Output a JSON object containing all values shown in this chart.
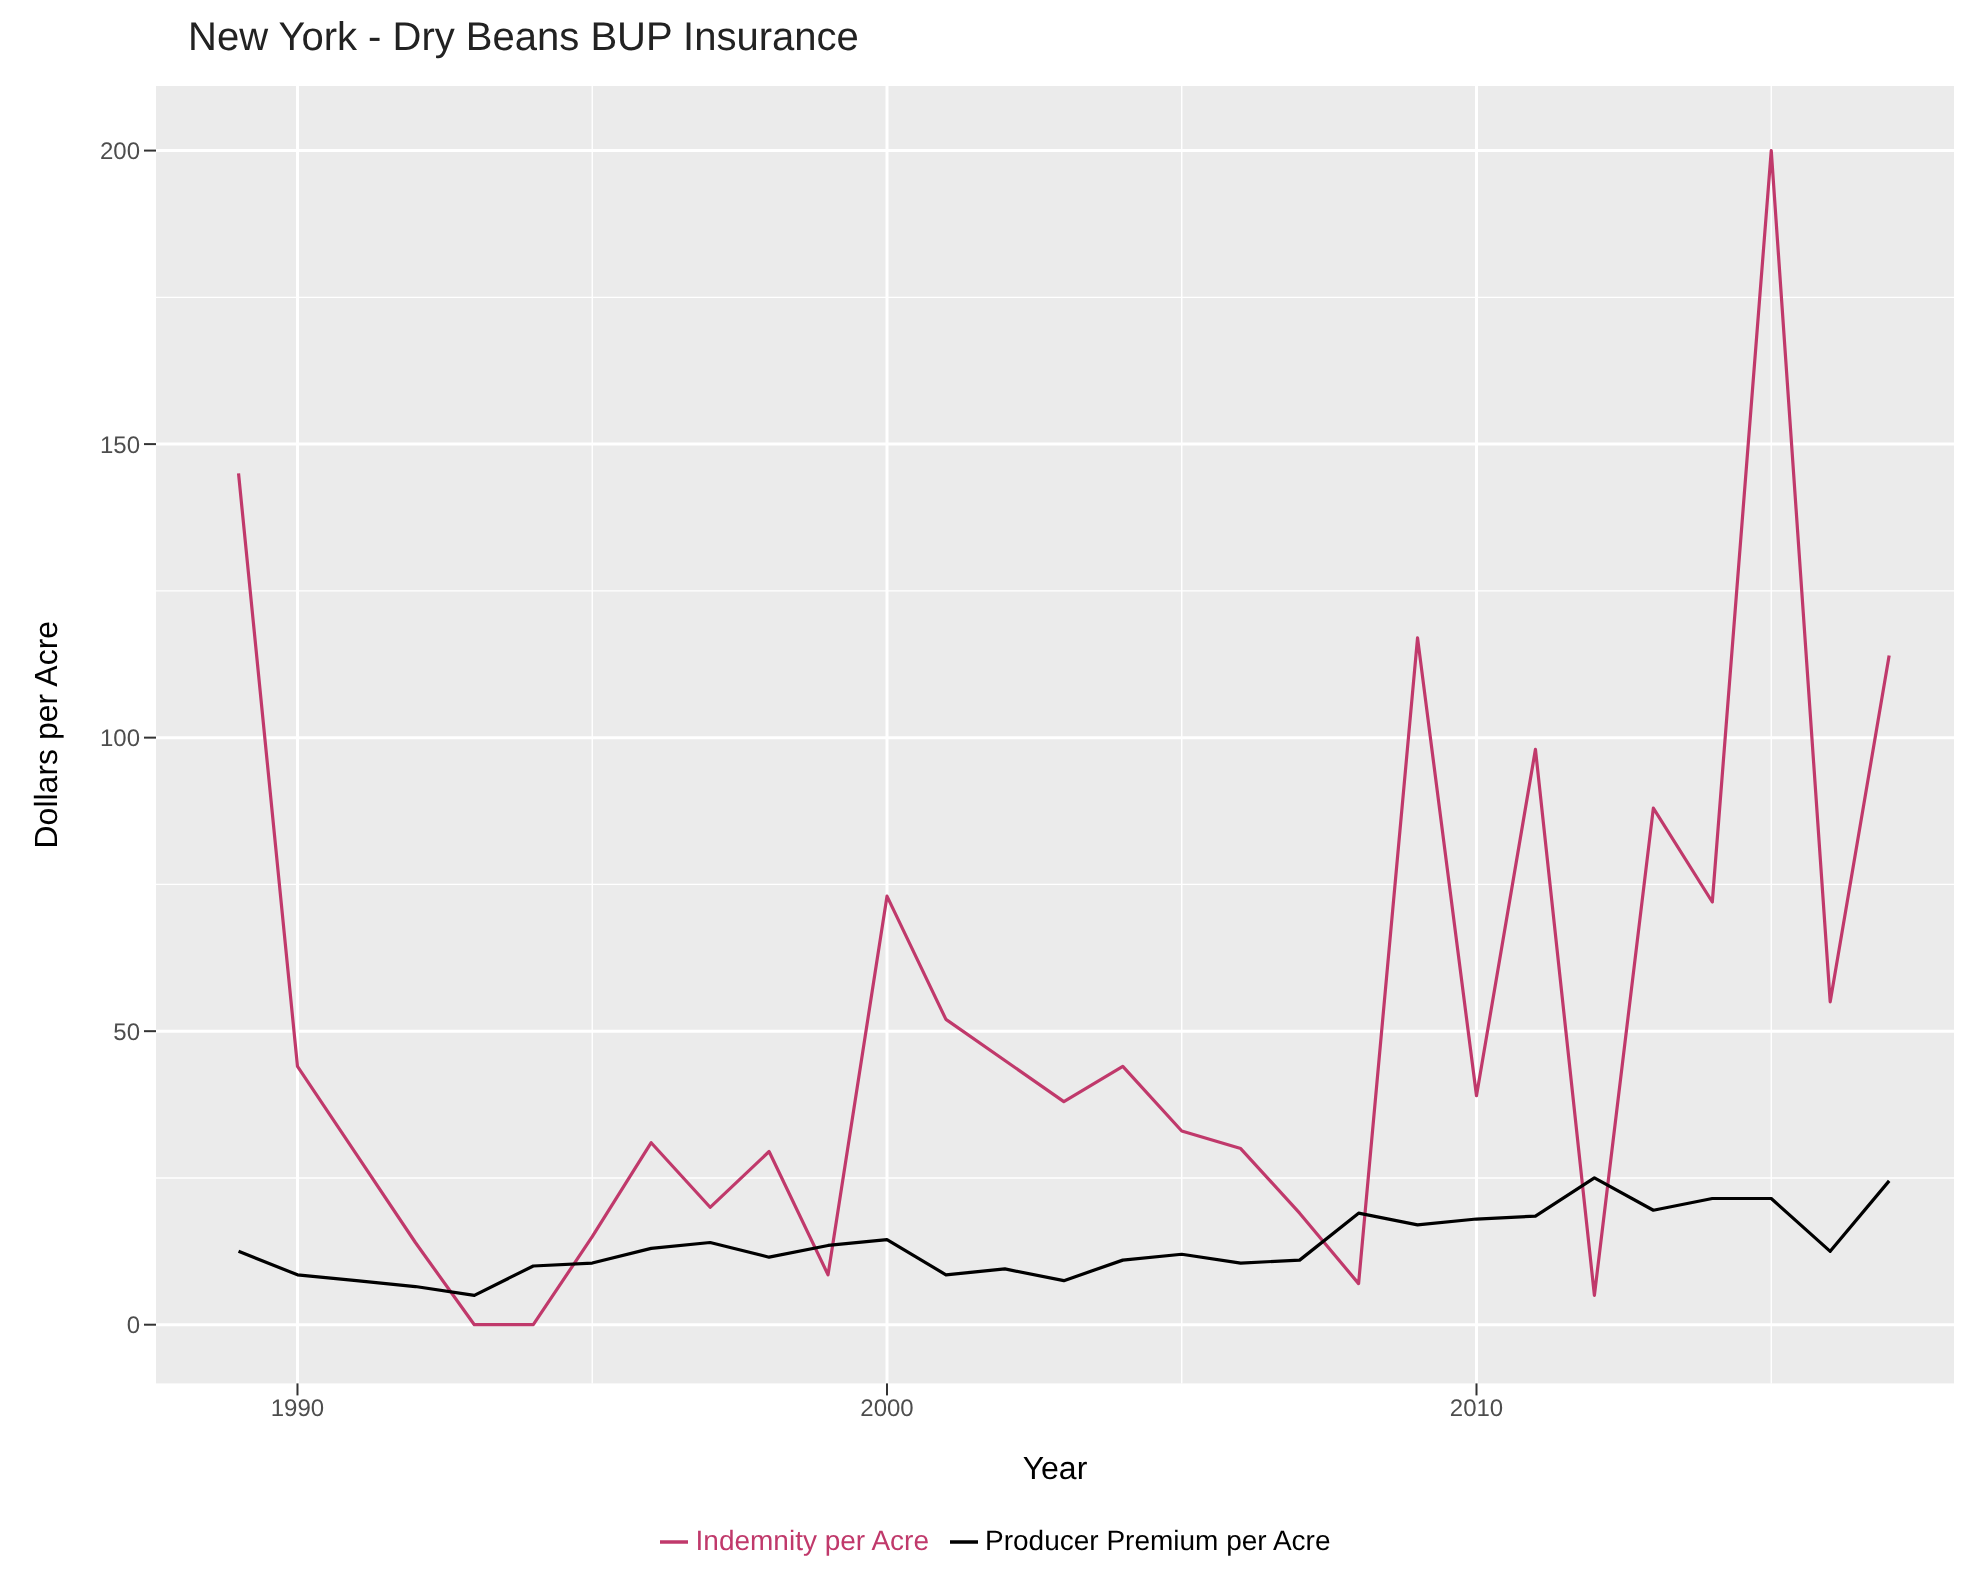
{
  "chart_data": {
    "type": "line",
    "title": "New York - Dry Beans BUP Insurance",
    "xlabel": "Year",
    "ylabel": "Dollars per Acre",
    "x": [
      1989,
      1990,
      1991,
      1992,
      1993,
      1994,
      1995,
      1996,
      1997,
      1998,
      1999,
      2000,
      2001,
      2002,
      2003,
      2004,
      2005,
      2006,
      2007,
      2008,
      2009,
      2010,
      2011,
      2012,
      2013,
      2014,
      2015,
      2016,
      2017
    ],
    "series": [
      {
        "name": "Indemnity per Acre",
        "color": "#c0396b",
        "values": [
          145,
          44,
          29,
          14,
          0,
          0,
          15,
          31,
          20,
          29.5,
          8.5,
          73,
          52,
          45,
          38,
          44,
          33,
          30,
          19,
          7,
          117,
          39,
          98,
          5,
          88,
          72,
          200,
          55,
          114
        ]
      },
      {
        "name": "Producer Premium per Acre",
        "color": "#000000",
        "values": [
          12.5,
          8.5,
          7.5,
          6.5,
          5,
          10,
          10.5,
          13,
          14,
          11.5,
          13.5,
          14.5,
          8.5,
          9.5,
          7.5,
          11,
          12,
          10.5,
          11,
          19,
          17,
          18,
          18.5,
          25,
          19.5,
          21.5,
          21.5,
          12.5,
          24.5
        ]
      }
    ],
    "xlim": [
      1987.6,
      2018.1
    ],
    "ylim": [
      -10,
      211
    ],
    "xticks": [
      1990,
      2000,
      2010
    ],
    "yticks": [
      0,
      50,
      100,
      150,
      200
    ],
    "grid": true,
    "legend": "bottom",
    "marker": "none",
    "line_style": "solid"
  }
}
